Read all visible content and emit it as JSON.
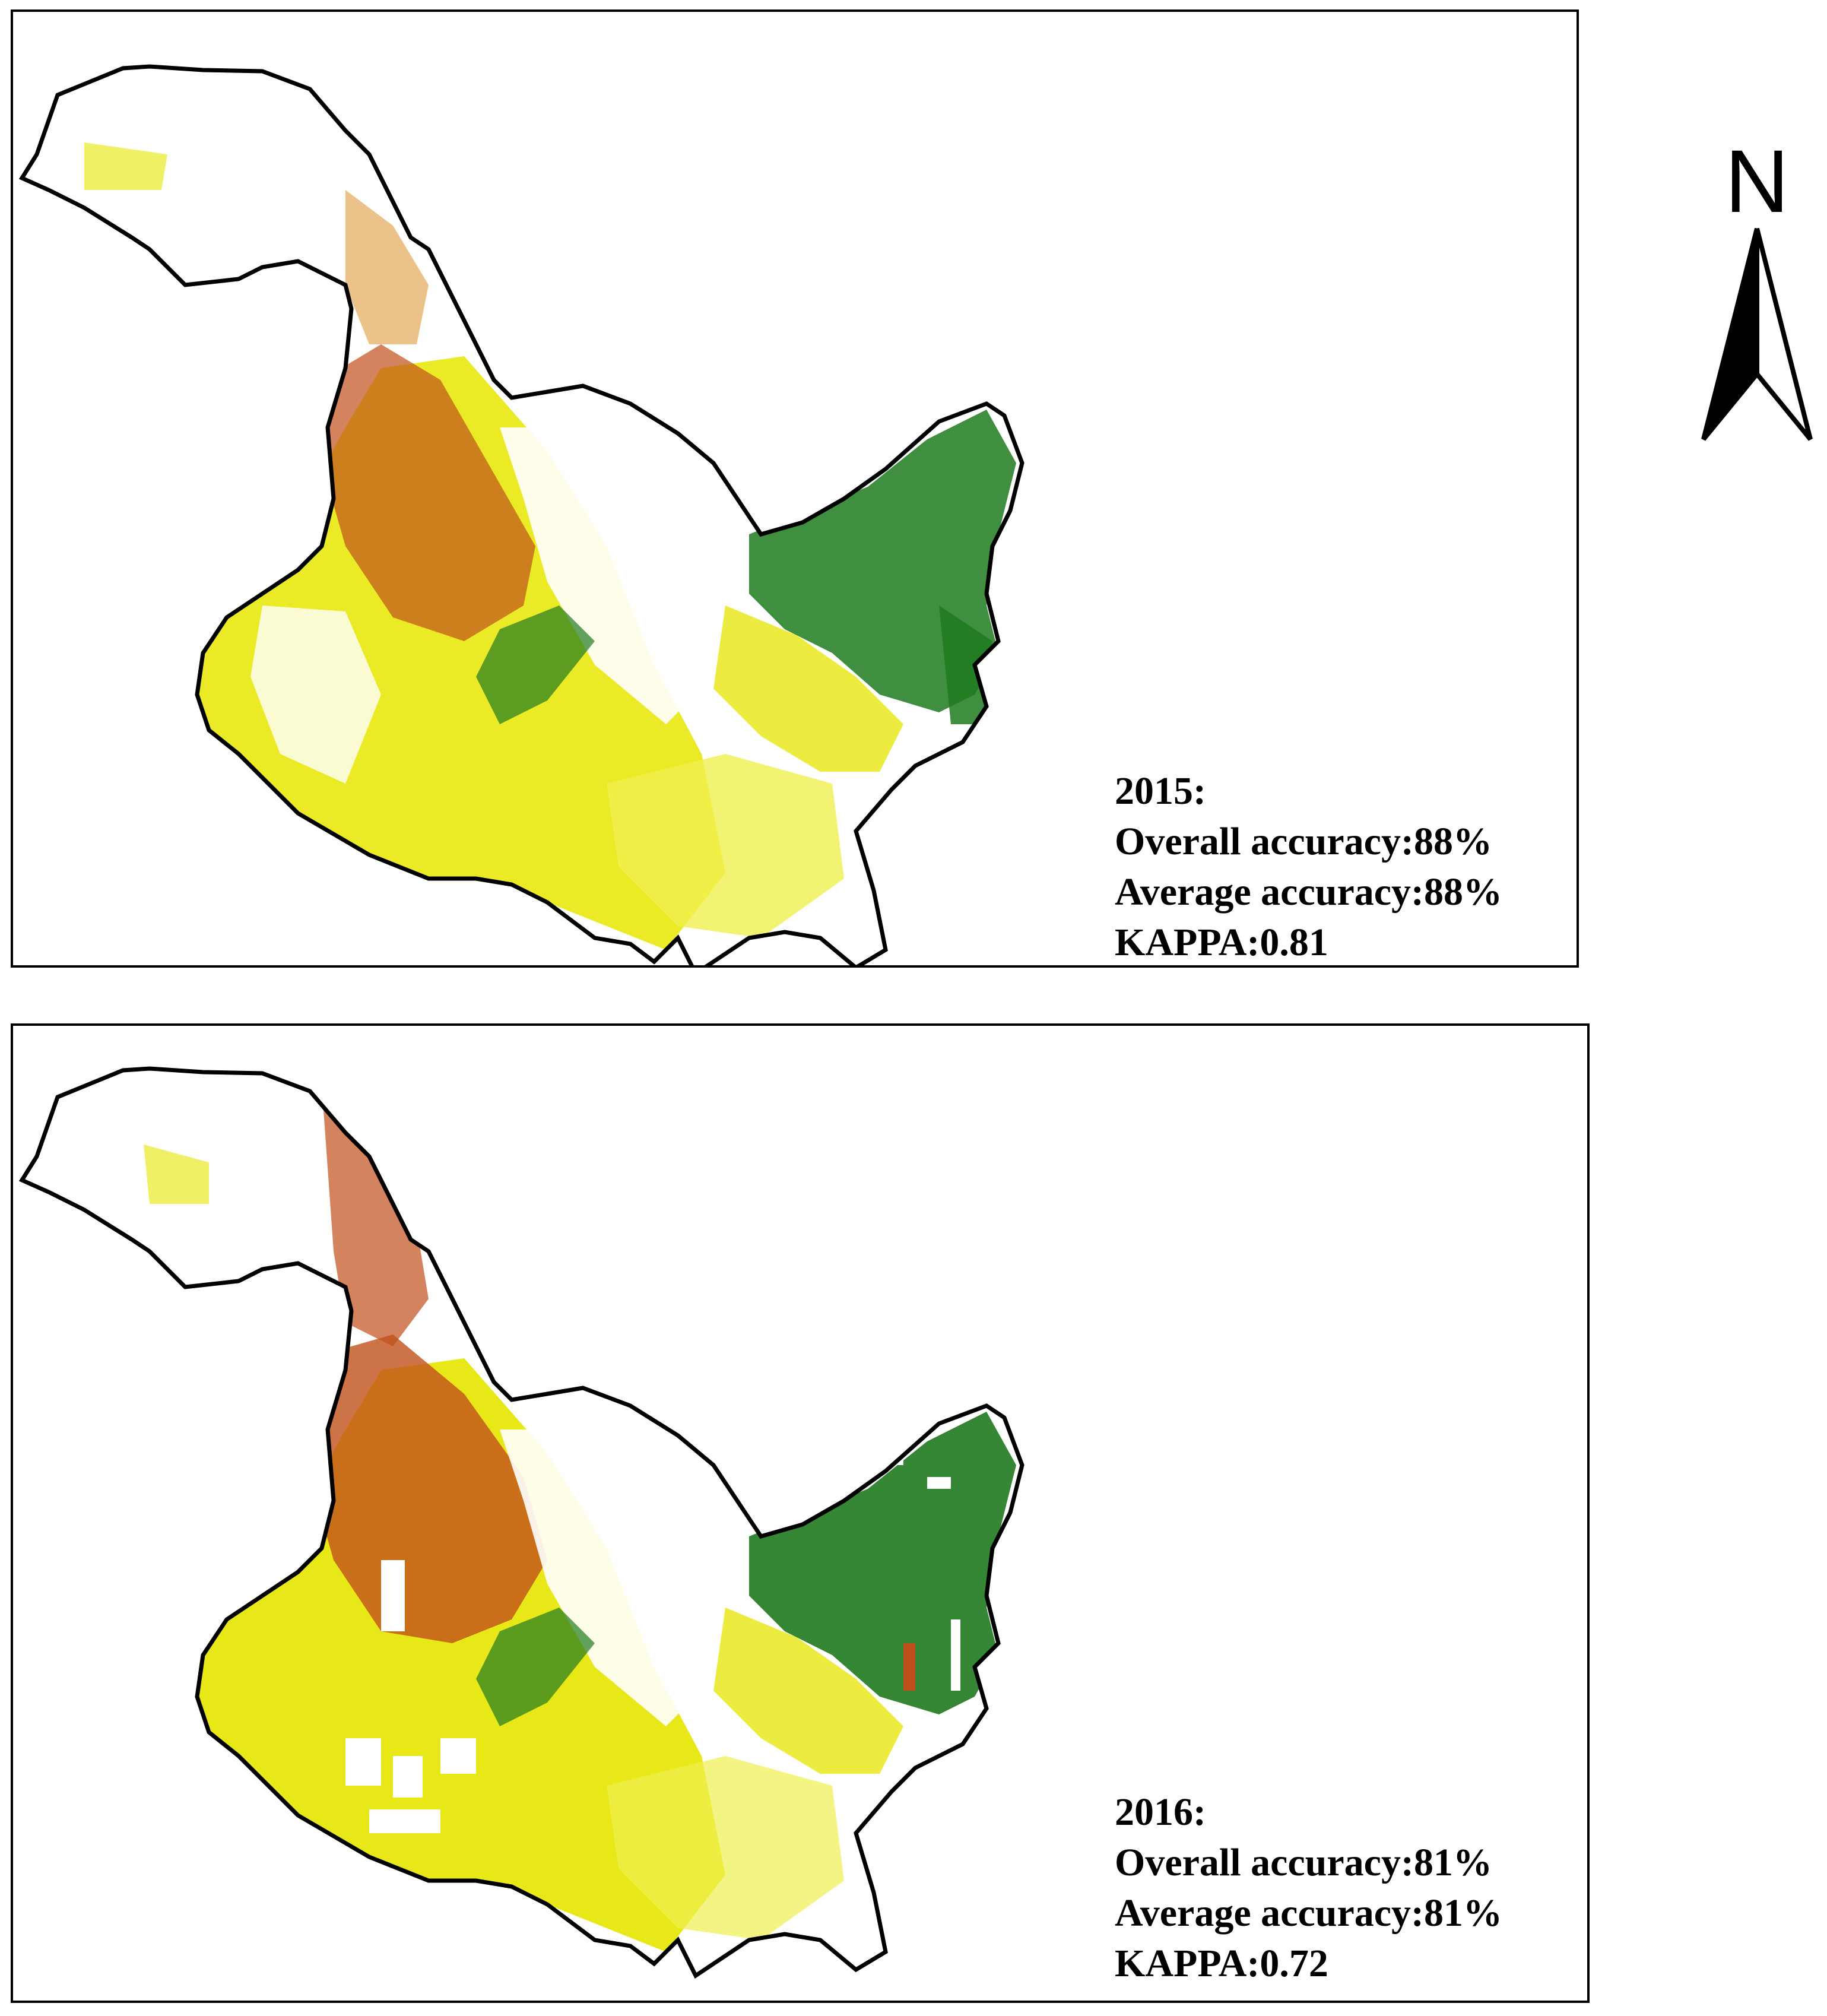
{
  "panels": [
    {
      "year_label": "2015:",
      "overall_accuracy": "Overall accuracy:88%",
      "average_accuracy": "Average accuracy:88%",
      "kappa": "KAPPA:0.81"
    },
    {
      "year_label": "2016:",
      "overall_accuracy": "Overall accuracy:81%",
      "average_accuracy": "Average accuracy:81%",
      "kappa": "KAPPA:0.72"
    }
  ],
  "north_arrow": {
    "letter": "N",
    "icon": "north-arrow-icon"
  },
  "colors": {
    "yellow_class": "#e6e600",
    "light_yellow_class": "#f0f050",
    "brown_class": "#c0501a",
    "green_class": "#1f7a1f",
    "boundary": "#000000",
    "background": "#ffffff"
  }
}
